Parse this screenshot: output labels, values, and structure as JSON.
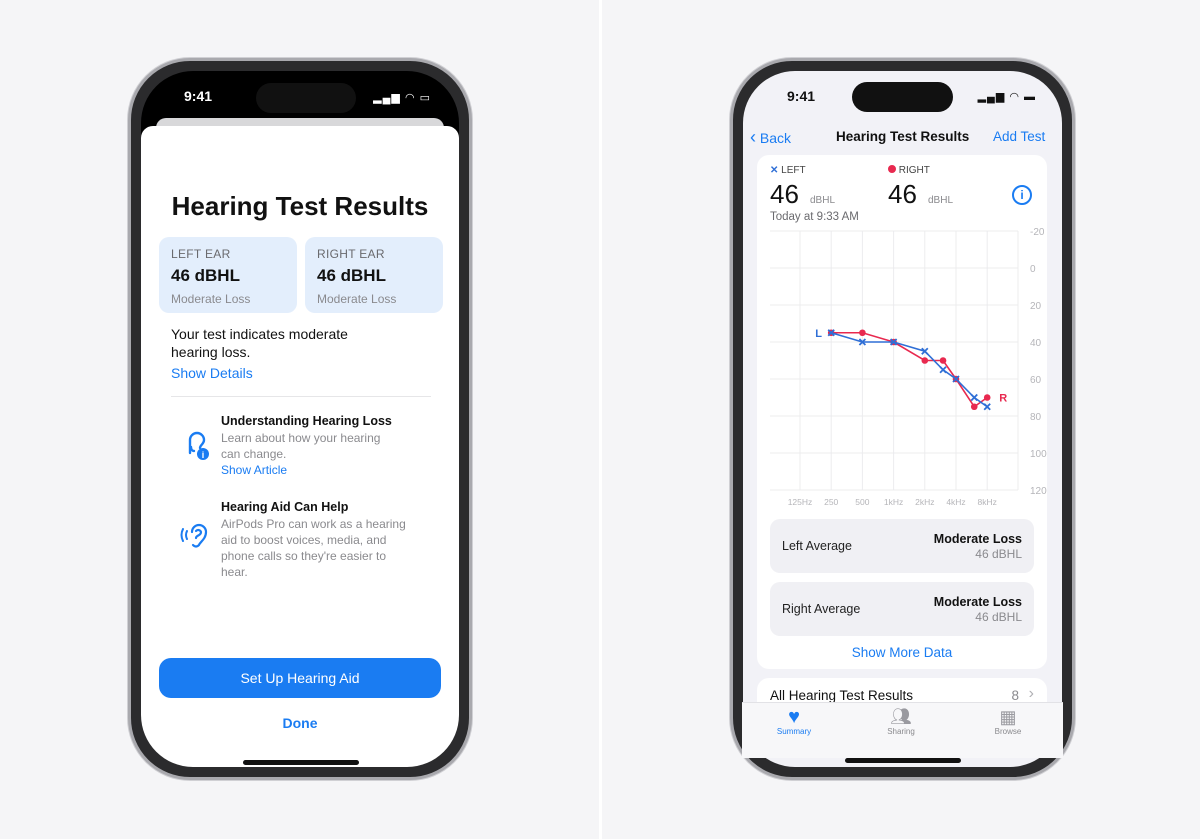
{
  "left_phone": {
    "status_time": "9:41",
    "title": "Hearing Test Results",
    "left_ear": {
      "label": "LEFT EAR",
      "value": "46 dBHL",
      "status": "Moderate Loss"
    },
    "right_ear": {
      "label": "RIGHT EAR",
      "value": "46 dBHL",
      "status": "Moderate Loss"
    },
    "summary": "Your test indicates moderate hearing loss.",
    "show_details": "Show Details",
    "info_items": [
      {
        "icon": "ear-info-icon",
        "title": "Understanding Hearing Loss",
        "body": "Learn about how your hearing can change.",
        "link": "Show Article"
      },
      {
        "icon": "ear-sound-icon",
        "title": "Hearing Aid Can Help",
        "body": "AirPods Pro can work as a hearing aid to boost voices, media, and phone calls so they're easier to hear."
      }
    ],
    "primary_button": "Set Up Hearing Aid",
    "done_button": "Done",
    "accent": "#1a7cf2"
  },
  "right_phone": {
    "status_time": "9:41",
    "nav": {
      "back": "Back",
      "title": "Hearing Test Results",
      "action": "Add Test"
    },
    "legend": {
      "left_label": "LEFT",
      "right_label": "RIGHT",
      "left_value": "46",
      "right_value": "46",
      "unit": "dBHL",
      "timestamp": "Today at 9:33 AM"
    },
    "averages": [
      {
        "label": "Left Average",
        "status": "Moderate Loss",
        "value": "46 dBHL"
      },
      {
        "label": "Right Average",
        "status": "Moderate Loss",
        "value": "46 dBHL"
      }
    ],
    "show_more": "Show More Data",
    "all_results": {
      "label": "All Hearing Test Results",
      "count": "8"
    },
    "tabs": [
      {
        "label": "Summary",
        "icon": "heart-icon",
        "active": true
      },
      {
        "label": "Sharing",
        "icon": "people-icon",
        "active": false
      },
      {
        "label": "Browse",
        "icon": "grid-icon",
        "active": false
      }
    ],
    "colors": {
      "left": "#2f6fd6",
      "right": "#e8294f"
    }
  },
  "chart_data": {
    "type": "line",
    "x_tick_labels": [
      "125Hz",
      "250",
      "500",
      "1kHz",
      "2kHz",
      "4kHz",
      "8kHz"
    ],
    "x_tick_values_hz": [
      125,
      250,
      500,
      1000,
      2000,
      4000,
      8000
    ],
    "y_ticks": [
      -20,
      0,
      20,
      40,
      60,
      80,
      100,
      120
    ],
    "ylim": [
      -20,
      120
    ],
    "y_inverted": true,
    "x_scale": "log",
    "grid": true,
    "series": [
      {
        "name": "L",
        "marker": "x",
        "x": [
          250,
          500,
          1000,
          2000,
          3000,
          4000,
          6000,
          8000
        ],
        "y": [
          35,
          40,
          40,
          45,
          55,
          60,
          70,
          75
        ]
      },
      {
        "name": "R",
        "marker": "o",
        "x": [
          250,
          500,
          1000,
          2000,
          3000,
          4000,
          6000,
          8000
        ],
        "y": [
          35,
          35,
          40,
          50,
          50,
          60,
          75,
          70
        ]
      }
    ]
  }
}
